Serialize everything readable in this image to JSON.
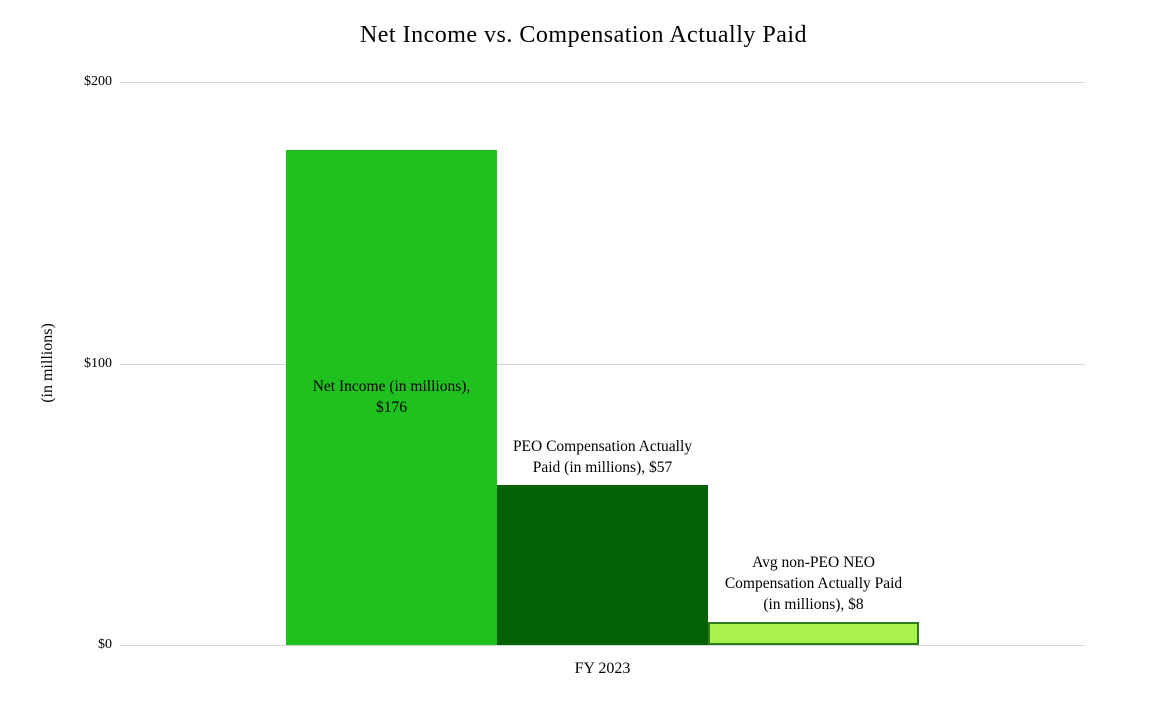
{
  "chart_data": {
    "type": "bar",
    "title": "Net Income vs. Compensation Actually Paid",
    "ylabel": "(in millions)",
    "xlabel": "",
    "categories": [
      "FY 2023"
    ],
    "ylim": [
      0,
      200
    ],
    "yticks": [
      {
        "value": 0,
        "label": "$0"
      },
      {
        "value": 100,
        "label": "$100"
      },
      {
        "value": 200,
        "label": "$200"
      }
    ],
    "grid": true,
    "gridline_color": "#d6d6d6",
    "legend": "none",
    "series": [
      {
        "name": "Net Income (in millions)",
        "values": [
          176
        ],
        "color": "#1fc11f",
        "border_color": "",
        "data_label_lines": [
          "Net Income (in millions),",
          "$176"
        ],
        "data_label_text": "Net Income (in millions), $176",
        "label_position": "inside-center"
      },
      {
        "name": "PEO Compensation Actually Paid (in millions)",
        "values": [
          57
        ],
        "color": "#056105",
        "border_color": "",
        "data_label_lines": [
          "PEO Compensation Actually",
          "Paid (in millions),  $57"
        ],
        "data_label_text": "PEO Compensation Actually Paid (in millions), $57",
        "label_position": "outside-end"
      },
      {
        "name": "Avg non-PEO NEO Compensation Actually Paid (in millions)",
        "values": [
          8
        ],
        "color": "#a9f24e",
        "border_color": "#2f7d1a",
        "data_label_lines": [
          "Avg non-PEO NEO",
          "Compensation Actually Paid",
          "(in millions),  $8"
        ],
        "data_label_text": "Avg non-PEO NEO Compensation Actually Paid (in millions), $8",
        "label_position": "outside-end"
      }
    ]
  }
}
